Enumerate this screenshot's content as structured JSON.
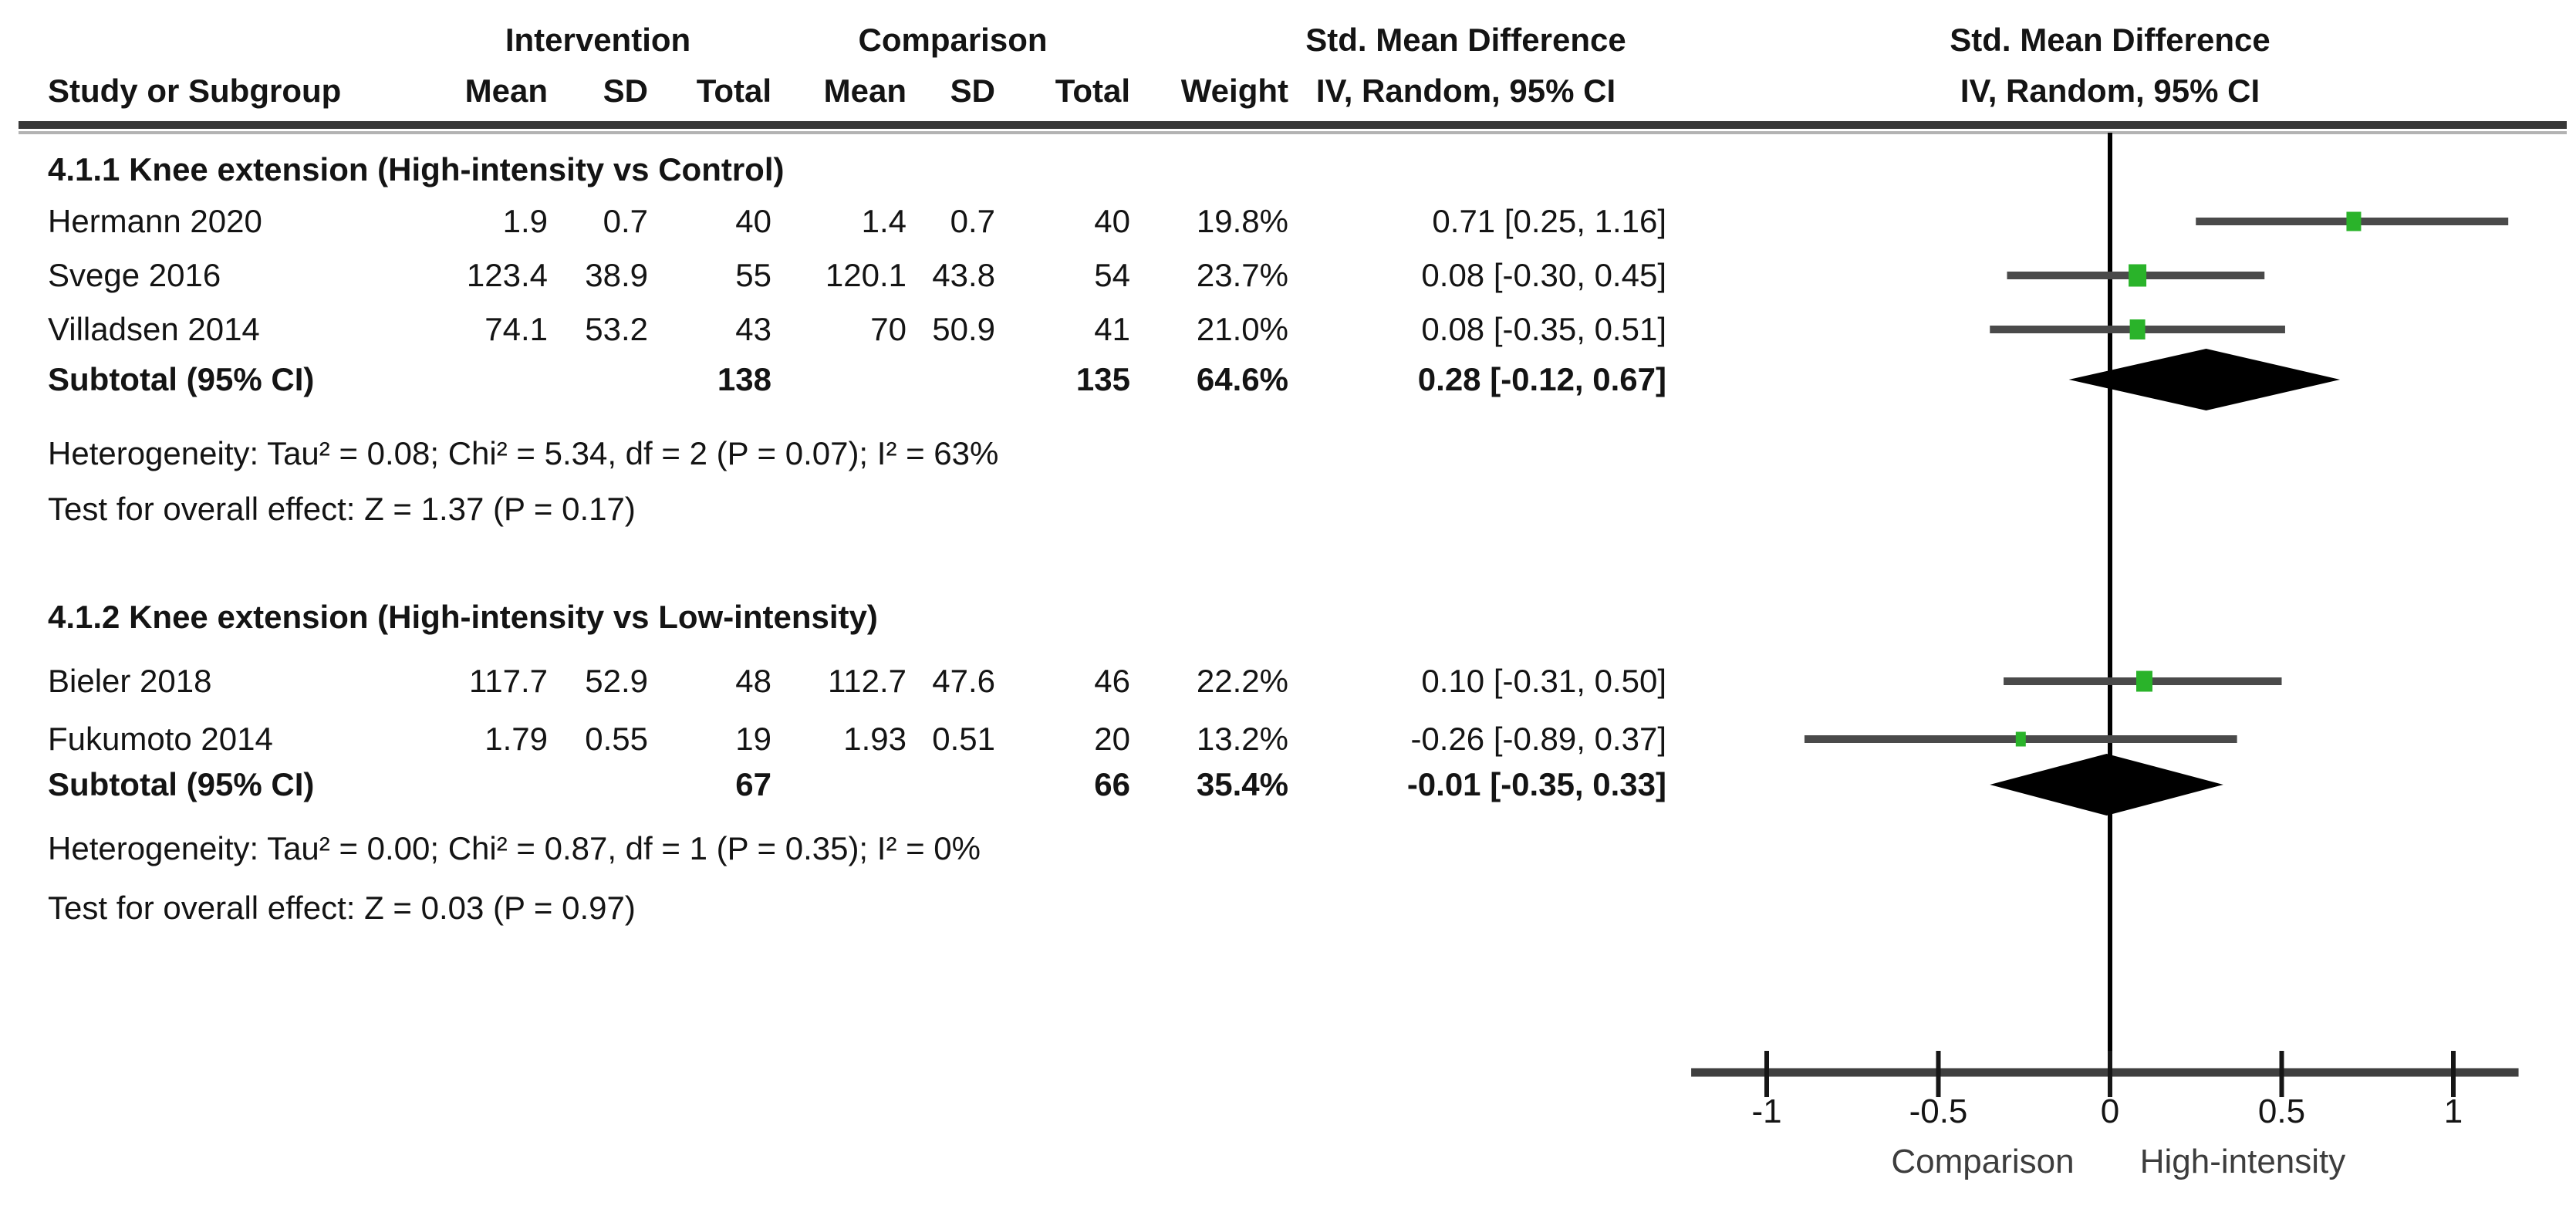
{
  "table": {
    "header": {
      "group_intervention": "Intervention",
      "group_comparison": "Comparison",
      "smd_left": "Std. Mean Difference",
      "smd_right": "Std. Mean Difference",
      "study": "Study or Subgroup",
      "mean1": "Mean",
      "sd1": "SD",
      "total1": "Total",
      "mean2": "Mean",
      "sd2": "SD",
      "total2": "Total",
      "weight": "Weight",
      "method_left": "IV, Random, 95% CI",
      "method_right": "IV, Random, 95% CI"
    },
    "groups": [
      {
        "title": "4.1.1 Knee extension (High-intensity vs Control)",
        "studies": [
          {
            "name": "Hermann 2020",
            "mean1": "1.9",
            "sd1": "0.7",
            "n1": "40",
            "mean2": "1.4",
            "sd2": "0.7",
            "n2": "40",
            "weight": "19.8%",
            "ci": "0.71 [0.25, 1.16]"
          },
          {
            "name": "Svege 2016",
            "mean1": "123.4",
            "sd1": "38.9",
            "n1": "55",
            "mean2": "120.1",
            "sd2": "43.8",
            "n2": "54",
            "weight": "23.7%",
            "ci": "0.08 [-0.30, 0.45]"
          },
          {
            "name": "Villadsen 2014",
            "mean1": "74.1",
            "sd1": "53.2",
            "n1": "43",
            "mean2": "70",
            "sd2": "50.9",
            "n2": "41",
            "weight": "21.0%",
            "ci": "0.08 [-0.35, 0.51]"
          }
        ],
        "subtotal": {
          "label": "Subtotal (95% CI)",
          "n1": "138",
          "n2": "135",
          "weight": "64.6%",
          "ci": "0.28 [-0.12, 0.67]"
        },
        "heterogeneity": "Heterogeneity: Tau² = 0.08; Chi² = 5.34, df = 2 (P = 0.07); I² = 63%",
        "overall_effect": "Test for overall effect: Z = 1.37 (P = 0.17)"
      },
      {
        "title": "4.1.2 Knee extension (High-intensity vs Low-intensity)",
        "studies": [
          {
            "name": "Bieler 2018",
            "mean1": "117.7",
            "sd1": "52.9",
            "n1": "48",
            "mean2": "112.7",
            "sd2": "47.6",
            "n2": "46",
            "weight": "22.2%",
            "ci": "0.10 [-0.31, 0.50]"
          },
          {
            "name": "Fukumoto 2014",
            "mean1": "1.79",
            "sd1": "0.55",
            "n1": "19",
            "mean2": "1.93",
            "sd2": "0.51",
            "n2": "20",
            "weight": "13.2%",
            "ci": "-0.26 [-0.89, 0.37]"
          }
        ],
        "subtotal": {
          "label": "Subtotal (95% CI)",
          "n1": "67",
          "n2": "66",
          "weight": "35.4%",
          "ci": "-0.01 [-0.35, 0.33]"
        },
        "heterogeneity": "Heterogeneity: Tau² = 0.00; Chi² = 0.87, df = 1 (P = 0.35); I² = 0%",
        "overall_effect": "Test for overall effect: Z = 0.03 (P = 0.97)"
      }
    ]
  },
  "chart_data": {
    "type": "forest",
    "effect_measure": "Std. Mean Difference, IV, Random, 95% CI",
    "axis": {
      "min": -1.22,
      "max": 1.19,
      "ticks": [
        {
          "v": -1,
          "label": "-1"
        },
        {
          "v": -0.5,
          "label": "-0.5"
        },
        {
          "v": 0,
          "label": "0"
        },
        {
          "v": 0.5,
          "label": "0.5"
        },
        {
          "v": 1,
          "label": "1"
        }
      ],
      "label_left": "Comparison",
      "label_right": "High-intensity"
    },
    "groups": [
      {
        "title": "4.1.1 Knee extension (High-intensity vs Control)",
        "studies": [
          {
            "label": "Hermann 2020",
            "smd": 0.71,
            "ci_low": 0.25,
            "ci_high": 1.16,
            "weight_pct": 19.8
          },
          {
            "label": "Svege 2016",
            "smd": 0.08,
            "ci_low": -0.3,
            "ci_high": 0.45,
            "weight_pct": 23.7
          },
          {
            "label": "Villadsen 2014",
            "smd": 0.08,
            "ci_low": -0.35,
            "ci_high": 0.51,
            "weight_pct": 21.0
          }
        ],
        "subtotal": {
          "smd": 0.28,
          "ci_low": -0.12,
          "ci_high": 0.67,
          "weight_pct": 64.6
        }
      },
      {
        "title": "4.1.2 Knee extension (High-intensity vs Low-intensity)",
        "studies": [
          {
            "label": "Bieler 2018",
            "smd": 0.1,
            "ci_low": -0.31,
            "ci_high": 0.5,
            "weight_pct": 22.2
          },
          {
            "label": "Fukumoto 2014",
            "smd": -0.26,
            "ci_low": -0.89,
            "ci_high": 0.37,
            "weight_pct": 13.2
          }
        ],
        "subtotal": {
          "smd": -0.01,
          "ci_low": -0.35,
          "ci_high": 0.33,
          "weight_pct": 35.4
        }
      }
    ],
    "colors": {
      "marker": "#2ab32a",
      "ci_line": "#4a4a4a",
      "diamond": "#000000",
      "axis": "#3f3f3f",
      "zero_line": "#000000",
      "text": "#141414",
      "axis_sublabel": "#3d3d3d"
    }
  }
}
